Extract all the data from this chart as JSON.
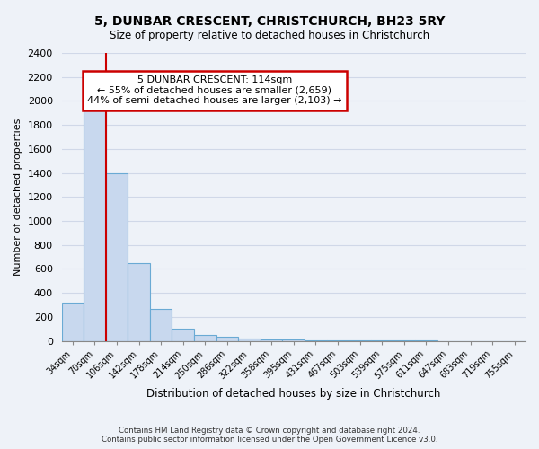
{
  "title": "5, DUNBAR CRESCENT, CHRISTCHURCH, BH23 5RY",
  "subtitle": "Size of property relative to detached houses in Christchurch",
  "xlabel": "Distribution of detached houses by size in Christchurch",
  "ylabel": "Number of detached properties",
  "bar_color": "#c8d8ee",
  "bar_edge_color": "#6aaad4",
  "categories": [
    "34sqm",
    "70sqm",
    "106sqm",
    "142sqm",
    "178sqm",
    "214sqm",
    "250sqm",
    "286sqm",
    "322sqm",
    "358sqm",
    "395sqm",
    "431sqm",
    "467sqm",
    "503sqm",
    "539sqm",
    "575sqm",
    "611sqm",
    "647sqm",
    "683sqm",
    "719sqm",
    "755sqm"
  ],
  "values": [
    320,
    1960,
    1400,
    650,
    270,
    100,
    50,
    35,
    22,
    15,
    10,
    7,
    5,
    4,
    3,
    2,
    2,
    1,
    1,
    1,
    1
  ],
  "ylim": [
    0,
    2400
  ],
  "yticks": [
    0,
    200,
    400,
    600,
    800,
    1000,
    1200,
    1400,
    1600,
    1800,
    2000,
    2200,
    2400
  ],
  "property_line_x": 1.5,
  "annotation_text": "5 DUNBAR CRESCENT: 114sqm\n← 55% of detached houses are smaller (2,659)\n44% of semi-detached houses are larger (2,103) →",
  "annotation_box_color": "#ffffff",
  "annotation_box_edge_color": "#cc0000",
  "red_line_color": "#cc0000",
  "footer_line1": "Contains HM Land Registry data © Crown copyright and database right 2024.",
  "footer_line2": "Contains public sector information licensed under the Open Government Licence v3.0.",
  "background_color": "#eef2f8",
  "grid_color": "#d0d8e8",
  "plot_bg_color": "#eef2f8"
}
